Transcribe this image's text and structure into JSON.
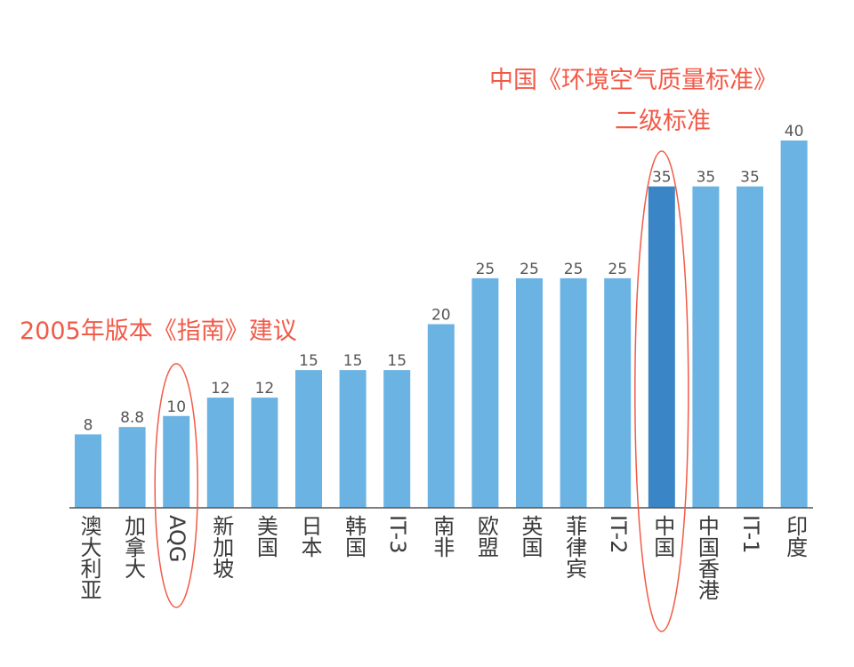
{
  "chart_data": {
    "type": "bar",
    "categories": [
      "澳大利亚",
      "加拿大",
      "AQG",
      "新加坡",
      "美国",
      "日本",
      "韩国",
      "IT-3",
      "南非",
      "欧盟",
      "英国",
      "菲律宾",
      "IT-2",
      "中国",
      "中国香港",
      "IT-1",
      "印度"
    ],
    "values": [
      8,
      8.8,
      10,
      12,
      12,
      15,
      15,
      15,
      20,
      25,
      25,
      25,
      25,
      35,
      35,
      35,
      40
    ],
    "value_labels": [
      "8",
      "8.8",
      "10",
      "12",
      "12",
      "15",
      "15",
      "15",
      "20",
      "25",
      "25",
      "25",
      "25",
      "35",
      "35",
      "35",
      "40"
    ],
    "highlight_index": 13,
    "circled_indices": [
      2,
      13
    ],
    "title": "",
    "xlabel": "",
    "ylabel": "",
    "ylim": [
      0,
      40
    ],
    "grid": false,
    "colors": {
      "bar": "#6bb3e3",
      "highlight": "#3a85c6",
      "annotation": "#f25a48",
      "axis": "#555555"
    },
    "annotations": [
      {
        "target_index": 2,
        "lines": [
          "2005年版本《指南》建议"
        ]
      },
      {
        "target_index": 13,
        "lines": [
          "中国《环境空气质量标准》",
          "二级标准"
        ]
      }
    ]
  }
}
